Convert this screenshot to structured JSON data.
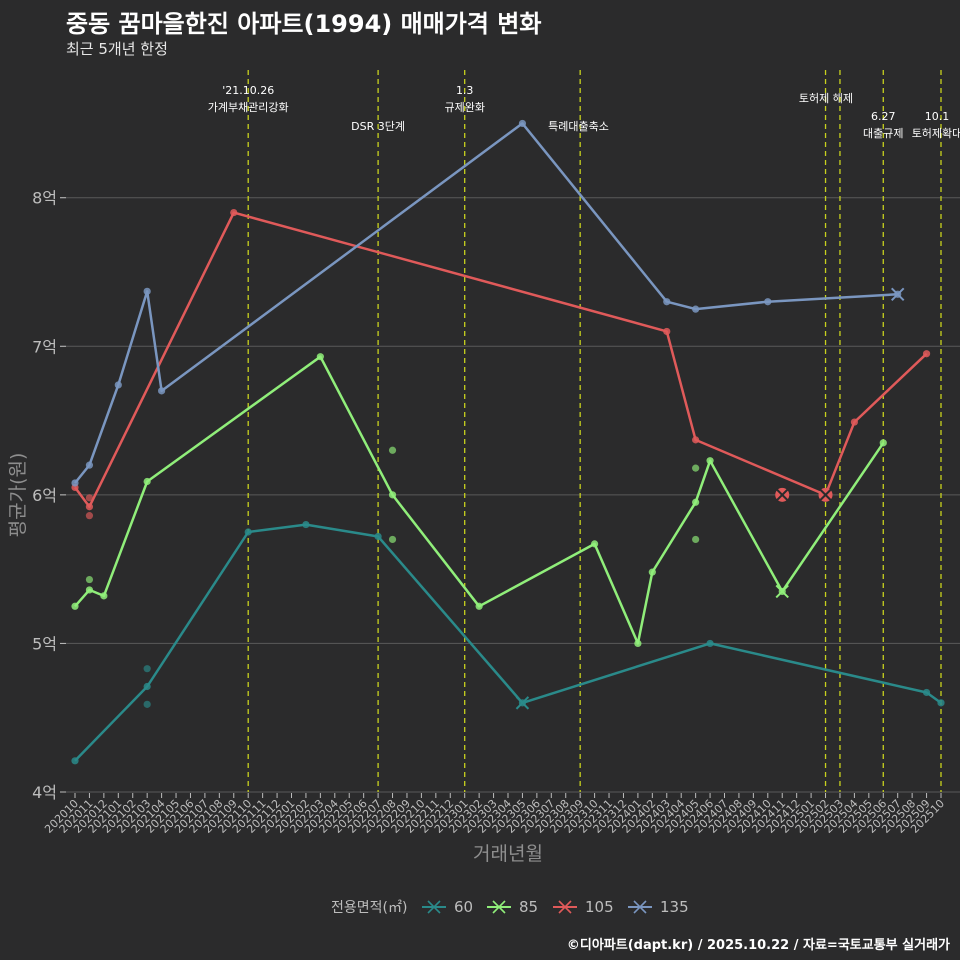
{
  "header": {
    "title": "중동 꿈마을한진 아파트(1994) 매매가격 변화",
    "subtitle": "최근 5개년 한정"
  },
  "footer": {
    "credit": "©디아파트(dapt.kr) / 2025.10.22 / 자료=국토교통부 실거래가"
  },
  "legend": {
    "title": "전용면적(㎡)"
  },
  "colors": {
    "background": "#2b2b2c",
    "grid": "#5a5a5a",
    "event_line": "#c8d21e",
    "s60": "#2a8a8a",
    "s85": "#90ee7a",
    "s105": "#e05a5a",
    "s135": "#7a96c0"
  },
  "chart_data": {
    "type": "line",
    "title": "중동 꿈마을한진 아파트(1994) 매매가격 변화",
    "subtitle": "최근 5개년 한정",
    "xlabel": "거래년월",
    "ylabel": "평균가(원)",
    "ylim": [
      4,
      8.9
    ],
    "yticks": [
      4,
      5,
      6,
      7,
      8
    ],
    "ytick_labels": [
      "4억",
      "5억",
      "6억",
      "7억",
      "8억"
    ],
    "categories": [
      "202010",
      "202011",
      "202012",
      "202101",
      "202102",
      "202103",
      "202104",
      "202105",
      "202106",
      "202107",
      "202108",
      "202109",
      "202110",
      "202111",
      "202112",
      "202201",
      "202202",
      "202203",
      "202204",
      "202205",
      "202206",
      "202207",
      "202208",
      "202209",
      "202210",
      "202211",
      "202212",
      "202301",
      "202302",
      "202303",
      "202304",
      "202305",
      "202306",
      "202307",
      "202308",
      "202309",
      "202310",
      "202311",
      "202312",
      "202401",
      "202402",
      "202403",
      "202404",
      "202405",
      "202406",
      "202407",
      "202408",
      "202409",
      "202410",
      "202411",
      "202412",
      "202501",
      "202502",
      "202503",
      "202504",
      "202505",
      "202506",
      "202507",
      "202508",
      "202509",
      "202510"
    ],
    "grid": true,
    "legend_position": "bottom",
    "series": [
      {
        "name": "60",
        "color": "#2a8a8a",
        "line": [
          [
            "202010",
            4.21
          ],
          [
            "202103",
            4.71
          ],
          [
            "202110",
            5.75
          ],
          [
            "202202",
            5.8
          ],
          [
            "202207",
            5.72
          ],
          [
            "202305",
            4.6
          ],
          [
            "202406",
            5.0
          ],
          [
            "202509",
            4.67
          ],
          [
            "202510",
            4.6
          ]
        ],
        "points": [
          [
            "202103",
            4.83
          ],
          [
            "202103",
            4.59
          ]
        ],
        "crosses": [
          [
            "202305",
            4.6
          ]
        ]
      },
      {
        "name": "85",
        "color": "#90ee7a",
        "line": [
          [
            "202010",
            5.25
          ],
          [
            "202011",
            5.36
          ],
          [
            "202012",
            5.32
          ],
          [
            "202103",
            6.09
          ],
          [
            "202203",
            6.93
          ],
          [
            "202208",
            6.0
          ],
          [
            "202302",
            5.25
          ],
          [
            "202310",
            5.67
          ],
          [
            "202401",
            5.0
          ],
          [
            "202402",
            5.48
          ],
          [
            "202405",
            5.95
          ],
          [
            "202406",
            6.23
          ],
          [
            "202411",
            5.35
          ],
          [
            "202506",
            6.35
          ]
        ],
        "points": [
          [
            "202011",
            5.43
          ],
          [
            "202208",
            6.3
          ],
          [
            "202208",
            5.7
          ],
          [
            "202405",
            6.18
          ],
          [
            "202405",
            5.7
          ]
        ],
        "crosses": [
          [
            "202411",
            5.35
          ]
        ]
      },
      {
        "name": "105",
        "color": "#e05a5a",
        "line": [
          [
            "202010",
            6.05
          ],
          [
            "202011",
            5.92
          ],
          [
            "202109",
            7.9
          ],
          [
            "202403",
            7.1
          ],
          [
            "202405",
            6.37
          ],
          [
            "202502",
            6.0
          ],
          [
            "202504",
            6.49
          ],
          [
            "202509",
            6.95
          ]
        ],
        "points": [
          [
            "202011",
            5.98
          ],
          [
            "202011",
            5.86
          ]
        ],
        "crosses": [
          [
            "202411",
            6.0
          ],
          [
            "202502",
            6.0
          ]
        ]
      },
      {
        "name": "135",
        "color": "#7a96c0",
        "line": [
          [
            "202010",
            6.08
          ],
          [
            "202011",
            6.2
          ],
          [
            "202101",
            6.74
          ],
          [
            "202103",
            7.37
          ],
          [
            "202104",
            6.7
          ],
          [
            "202305",
            8.5
          ],
          [
            "202403",
            7.3
          ],
          [
            "202405",
            7.25
          ],
          [
            "202410",
            7.3
          ],
          [
            "202507",
            7.35
          ]
        ],
        "points": [],
        "crosses": [
          [
            "202507",
            7.35
          ]
        ]
      }
    ],
    "events": [
      {
        "month": "202110",
        "lines": [
          "'21.10.26",
          "가계부채관리강화"
        ],
        "row": 1
      },
      {
        "month": "202207",
        "lines": [
          "DSR 3단계"
        ],
        "row": 3
      },
      {
        "month": "202301",
        "lines": [
          "1.3",
          "규제완화"
        ],
        "row": 1
      },
      {
        "month": "202309",
        "lines": [
          "특례대출축소"
        ],
        "row": 3,
        "offset": -1
      },
      {
        "month": "202502",
        "lines": [
          "토허제 해제"
        ],
        "row": 2,
        "anchor": "202503"
      },
      {
        "month": "202503",
        "lines": [],
        "row": 0
      },
      {
        "month": "202506",
        "lines": [
          "6.27",
          "대출규제"
        ],
        "row": 3
      },
      {
        "month": "202510",
        "lines": [
          "10.1",
          "토허제확대"
        ],
        "row": 3
      }
    ]
  }
}
